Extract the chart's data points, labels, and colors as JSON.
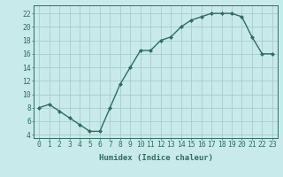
{
  "x": [
    0,
    1,
    2,
    3,
    4,
    5,
    6,
    7,
    8,
    9,
    10,
    11,
    12,
    13,
    14,
    15,
    16,
    17,
    18,
    19,
    20,
    21,
    22,
    23
  ],
  "y": [
    8,
    8.5,
    7.5,
    6.5,
    5.5,
    4.5,
    4.5,
    8,
    11.5,
    14,
    16.5,
    16.5,
    18,
    18.5,
    20,
    21,
    21.5,
    22,
    22,
    22,
    21.5,
    18.5,
    16,
    16
  ],
  "line_color": "#2e6e60",
  "marker": "D",
  "marker_size": 2.0,
  "bg_color": "#c8eaea",
  "grid_color": "#a8cccc",
  "tick_label_color": "#2e6e60",
  "xlabel": "Humidex (Indice chaleur)",
  "ylabel_ticks": [
    4,
    6,
    8,
    10,
    12,
    14,
    16,
    18,
    20,
    22
  ],
  "xlim": [
    -0.5,
    23.5
  ],
  "ylim": [
    3.5,
    23.2
  ],
  "xticks": [
    0,
    1,
    2,
    3,
    4,
    5,
    6,
    7,
    8,
    9,
    10,
    11,
    12,
    13,
    14,
    15,
    16,
    17,
    18,
    19,
    20,
    21,
    22,
    23
  ],
  "xlabel_fontsize": 6.5,
  "tick_fontsize": 5.8,
  "line_width": 1.0
}
